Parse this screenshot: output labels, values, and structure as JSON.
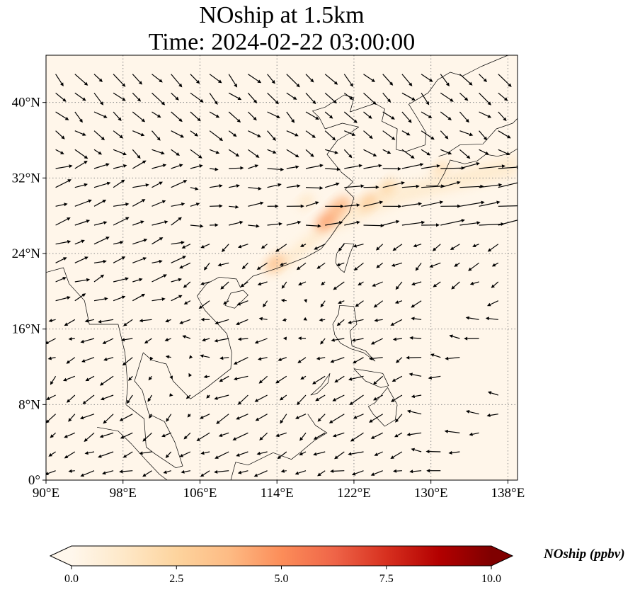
{
  "chart_data": {
    "type": "heatmap",
    "title": "NOship at 1.5km",
    "subtitle": "Time: 2024-02-22 03:00:00",
    "colorbar": {
      "label": "NOship (ppbv)",
      "min": 0.0,
      "max": 10.0,
      "ticks": [
        "0.0",
        "2.5",
        "5.0",
        "7.5",
        "10.0"
      ],
      "colormap": "OrRd",
      "extend": "both"
    },
    "x_axis": {
      "range": [
        90,
        139
      ],
      "ticks": [
        90,
        98,
        106,
        114,
        122,
        130,
        138
      ],
      "tick_labels": [
        "90°E",
        "98°E",
        "106°E",
        "114°E",
        "122°E",
        "130°E",
        "138°E"
      ]
    },
    "y_axis": {
      "range": [
        0,
        45
      ],
      "ticks": [
        0,
        8,
        16,
        24,
        32,
        40
      ],
      "tick_labels": [
        "0°",
        "8°N",
        "16°N",
        "24°N",
        "32°N",
        "40°N"
      ]
    },
    "grid": true,
    "overlay": "wind vectors (quiver)",
    "hotspots": [
      {
        "lon": 113.8,
        "lat": 23.0,
        "value": 3.5
      },
      {
        "lon": 119.2,
        "lat": 27.5,
        "value": 4.5
      },
      {
        "lon": 120.5,
        "lat": 29.0,
        "value": 4.0
      },
      {
        "lon": 123.5,
        "lat": 29.5,
        "value": 3.0
      },
      {
        "lon": 125.5,
        "lat": 31.0,
        "value": 2.5
      },
      {
        "lon": 131.0,
        "lat": 33.0,
        "value": 2.0
      },
      {
        "lon": 117.0,
        "lat": 29.5,
        "value": 1.5
      }
    ]
  },
  "colors": {
    "background": "#fff6ea",
    "colormap_stops": [
      "#fff7ec",
      "#fee8c8",
      "#fdd49e",
      "#fdbb84",
      "#fc8d59",
      "#ef6548",
      "#d7301f",
      "#b30000",
      "#7f0000"
    ],
    "vector": "#000000",
    "grid": "#8a8a8a",
    "coastline": "#000000"
  }
}
